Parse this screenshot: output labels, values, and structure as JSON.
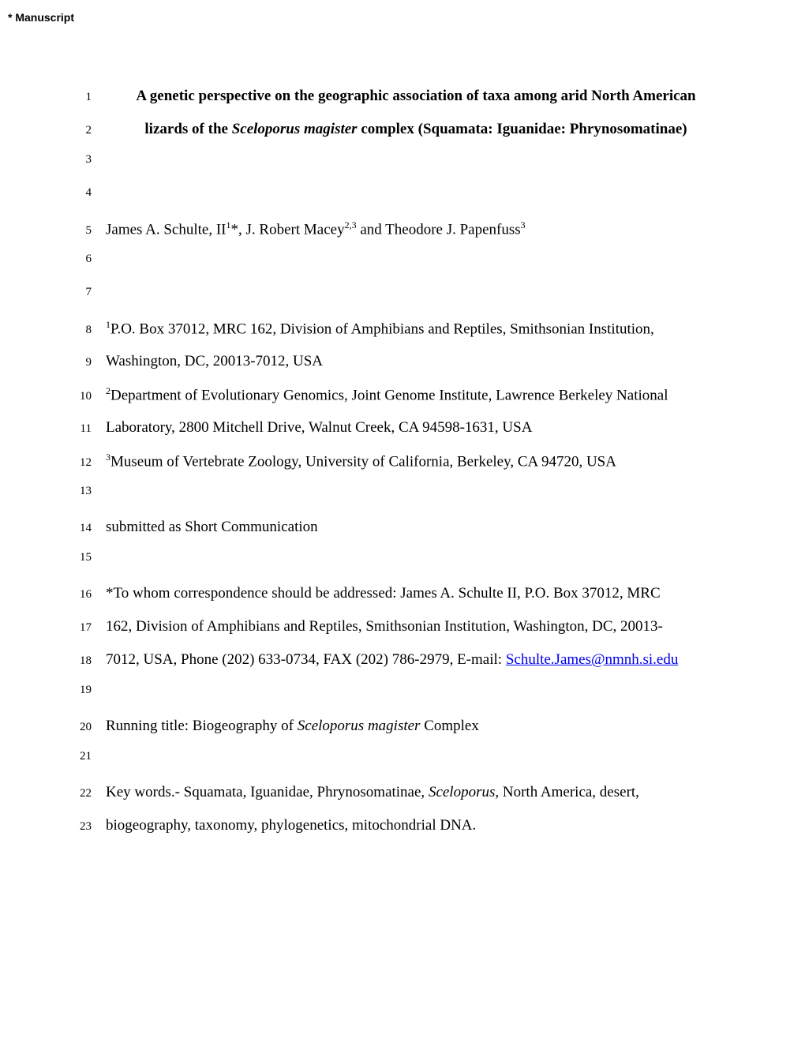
{
  "header_tag": "* Manuscript",
  "lines": {
    "1": {
      "kind": "title1"
    },
    "2": {
      "kind": "title2"
    },
    "3": {
      "kind": "blank"
    },
    "4": {
      "kind": "blank"
    },
    "5": {
      "kind": "authors"
    },
    "6": {
      "kind": "blank"
    },
    "7": {
      "kind": "blank"
    },
    "8": {
      "kind": "aff1a"
    },
    "9": {
      "kind": "aff1b",
      "text": "Washington, DC, 20013-7012, USA"
    },
    "10": {
      "kind": "aff2a"
    },
    "11": {
      "kind": "aff2b",
      "text": "Laboratory, 2800 Mitchell Drive, Walnut Creek, CA  94598-1631, USA"
    },
    "12": {
      "kind": "aff3"
    },
    "13": {
      "kind": "blank"
    },
    "14": {
      "kind": "plain",
      "text": "submitted as Short Communication"
    },
    "15": {
      "kind": "blank"
    },
    "16": {
      "kind": "plain",
      "text": "*To whom correspondence should be addressed: James A. Schulte II, P.O. Box 37012, MRC"
    },
    "17": {
      "kind": "plain",
      "text": "162, Division of Amphibians and Reptiles, Smithsonian Institution, Washington, DC, 20013-"
    },
    "18": {
      "kind": "email_line",
      "prefix": "7012, USA, Phone (202) 633-0734, FAX (202) 786-2979, E-mail:  ",
      "email": "Schulte.James@nmnh.si.edu"
    },
    "19": {
      "kind": "blank"
    },
    "20": {
      "kind": "running"
    },
    "21": {
      "kind": "blank"
    },
    "22": {
      "kind": "keywords1"
    },
    "23": {
      "kind": "plain",
      "text": "biogeography, taxonomy, phylogenetics, mitochondrial DNA."
    }
  },
  "title1": {
    "pre": "A genetic perspective on the geographic association of taxa among arid North American"
  },
  "title2": {
    "pre": "lizards of the ",
    "italic": "Sceloporus magister",
    "post": " complex (Squamata:  Iguanidae:  Phrynosomatinae)"
  },
  "authors": {
    "a1": "James A. Schulte, II",
    "s1": "1",
    "star": "*",
    "sep1": ", ",
    "a2": "J. Robert Macey",
    "s2": "2,3",
    "sep2": " and ",
    "a3": "Theodore J. Papenfuss",
    "s3": "3"
  },
  "aff1a": {
    "sup": "1",
    "text": "P.O. Box 37012, MRC 162, Division of Amphibians and Reptiles, Smithsonian Institution,"
  },
  "aff2a": {
    "sup": "2",
    "text": "Department of Evolutionary Genomics, Joint Genome Institute, Lawrence Berkeley National"
  },
  "aff3": {
    "sup": "3",
    "text": "Museum of Vertebrate Zoology, University of California, Berkeley, CA 94720, USA"
  },
  "running": {
    "pre": "Running title:  Biogeography of ",
    "italic": "Sceloporus magister",
    "post": " Complex"
  },
  "keywords1": {
    "pre": "Key words.- Squamata, Iguanidae, Phrynosomatinae, ",
    "italic": "Sceloporus",
    "post": ", North America, desert,"
  }
}
